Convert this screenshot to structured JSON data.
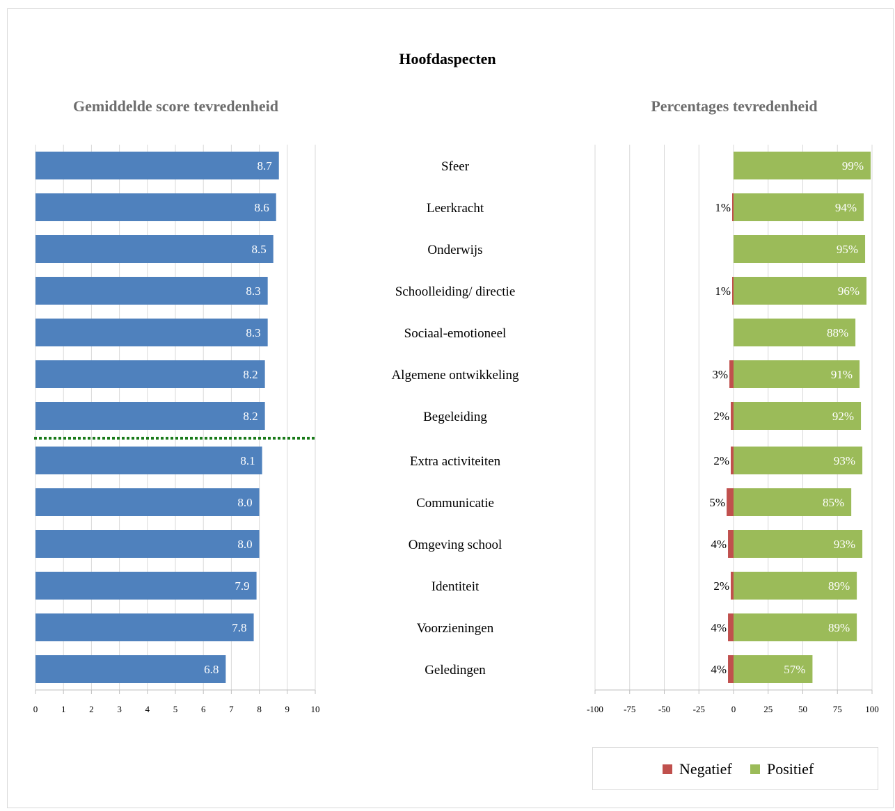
{
  "title": "Hoofdaspecten",
  "colors": {
    "bar_score": "#4f81bd",
    "negative": "#c0504d",
    "positive": "#9bbb59",
    "benchmark_line": "#1a7a1a",
    "grid": "#d9d9d9",
    "subtitle": "#6d6d6d"
  },
  "legend": {
    "negative_label": "Negatief",
    "positive_label": "Positief"
  },
  "chart_data": [
    {
      "type": "bar",
      "orientation": "horizontal",
      "title": "Gemiddelde score tevredenheid",
      "categories": [
        "Sfeer",
        "Leerkracht",
        "Onderwijs",
        "Schoolleiding/ directie",
        "Sociaal-emotioneel",
        "Algemene ontwikkeling",
        "Begeleiding",
        "Extra activiteiten",
        "Communicatie",
        "Omgeving school",
        "Identiteit",
        "Voorzieningen",
        "Geledingen"
      ],
      "values": [
        8.7,
        8.6,
        8.5,
        8.3,
        8.3,
        8.2,
        8.2,
        8.1,
        8.0,
        8.0,
        7.9,
        7.8,
        6.8
      ],
      "value_labels": [
        "8.7",
        "8.6",
        "8.5",
        "8.3",
        "8.3",
        "8.2",
        "8.2",
        "8.1",
        "8.0",
        "8.0",
        "7.9",
        "7.8",
        "6.8"
      ],
      "xlim": [
        0,
        10
      ],
      "xticks": [
        "0",
        "1",
        "2",
        "3",
        "4",
        "5",
        "6",
        "7",
        "8",
        "9",
        "10"
      ],
      "reference_line_after_category": "Begeleiding",
      "grid": true
    },
    {
      "type": "bar",
      "orientation": "horizontal",
      "stacked": "diverging",
      "title": "Percentages tevredenheid",
      "categories": [
        "Sfeer",
        "Leerkracht",
        "Onderwijs",
        "Schoolleiding/ directie",
        "Sociaal-emotioneel",
        "Algemene ontwikkeling",
        "Begeleiding",
        "Extra activiteiten",
        "Communicatie",
        "Omgeving school",
        "Identiteit",
        "Voorzieningen",
        "Geledingen"
      ],
      "series": [
        {
          "name": "Negatief",
          "values": [
            0,
            1,
            0,
            1,
            0,
            3,
            2,
            2,
            5,
            4,
            2,
            4,
            4
          ],
          "labels": [
            "",
            "1%",
            "",
            "1%",
            "",
            "3%",
            "2%",
            "2%",
            "5%",
            "4%",
            "2%",
            "4%",
            "4%"
          ]
        },
        {
          "name": "Positief",
          "values": [
            99,
            94,
            95,
            96,
            88,
            91,
            92,
            93,
            85,
            93,
            89,
            89,
            57
          ],
          "labels": [
            "99%",
            "94%",
            "95%",
            "96%",
            "88%",
            "91%",
            "92%",
            "93%",
            "85%",
            "93%",
            "89%",
            "89%",
            "57%"
          ]
        }
      ],
      "xlim": [
        -100,
        100
      ],
      "xticks": [
        "-100",
        "-75",
        "-50",
        "-25",
        "0",
        "25",
        "50",
        "75",
        "100"
      ],
      "grid": true,
      "legend_position": "bottom-right"
    }
  ]
}
